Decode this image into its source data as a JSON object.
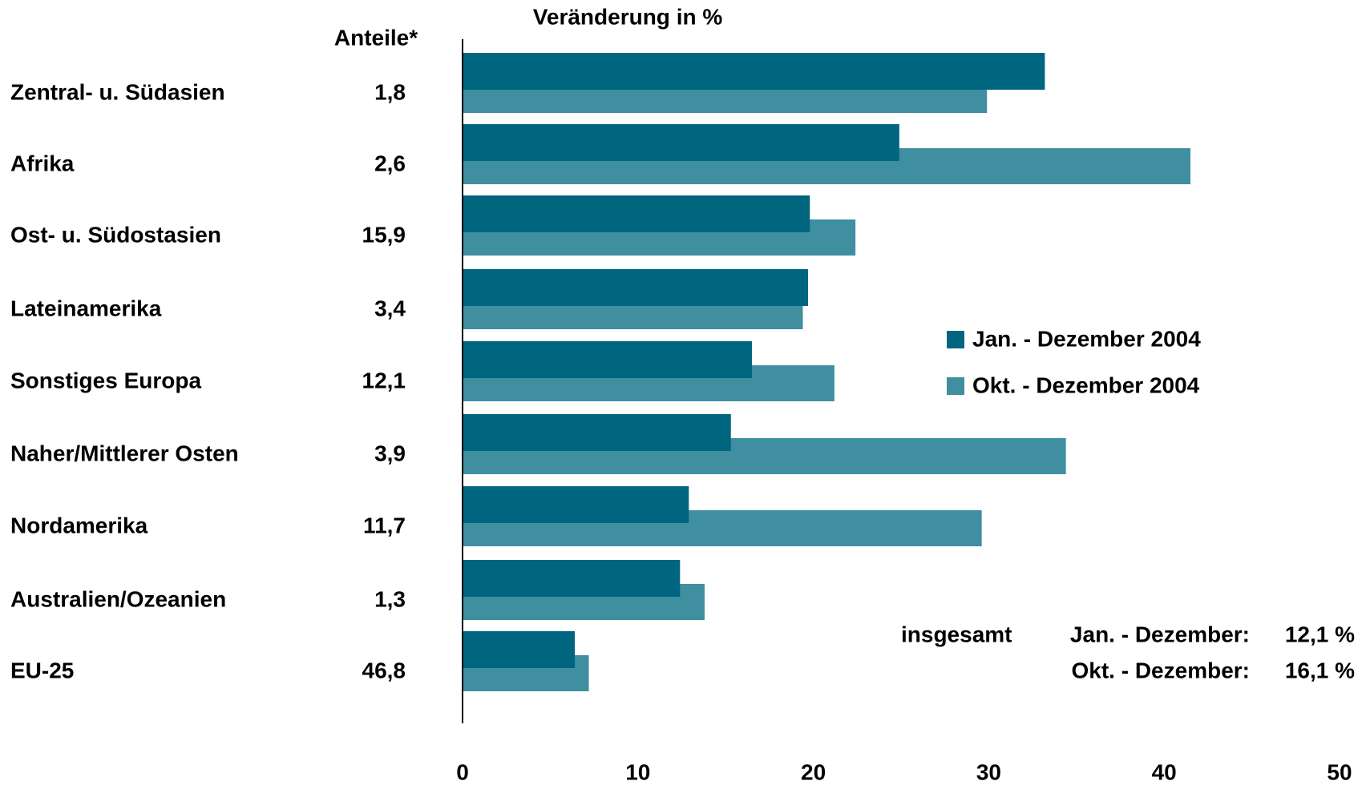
{
  "chart_data": {
    "type": "bar",
    "orientation": "horizontal",
    "title": "Veränderung in %",
    "share_header": "Anteile*",
    "categories": [
      "Zentral- u. Südasien",
      "Afrika",
      "Ost- u. Südostasien",
      "Lateinamerika",
      "Sonstiges Europa",
      "Naher/Mittlerer Osten",
      "Nordamerika",
      "Australien/Ozeanien",
      "EU-25"
    ],
    "shares": [
      "1,8",
      "2,6",
      "15,9",
      "3,4",
      "12,1",
      "3,9",
      "11,7",
      "1,3",
      "46,8"
    ],
    "series": [
      {
        "name": "Jan. - Dezember 2004",
        "color": "#006680",
        "values": [
          33.2,
          24.9,
          19.8,
          19.7,
          16.5,
          15.3,
          12.9,
          12.4,
          6.4
        ]
      },
      {
        "name": "Okt. - Dezember 2004",
        "color": "#3f8fa0",
        "values": [
          29.9,
          41.5,
          22.4,
          19.4,
          21.2,
          34.4,
          29.6,
          13.8,
          7.2
        ]
      }
    ],
    "xlim": [
      0,
      50
    ],
    "xticks": [
      0,
      10,
      20,
      30,
      40,
      50
    ],
    "annotation": {
      "prefix": "insgesamt",
      "rows": [
        {
          "label": "Jan. - Dezember:",
          "value": "12,1 %"
        },
        {
          "label": "Okt. - Dezember:",
          "value": "16,1 %"
        }
      ]
    }
  }
}
